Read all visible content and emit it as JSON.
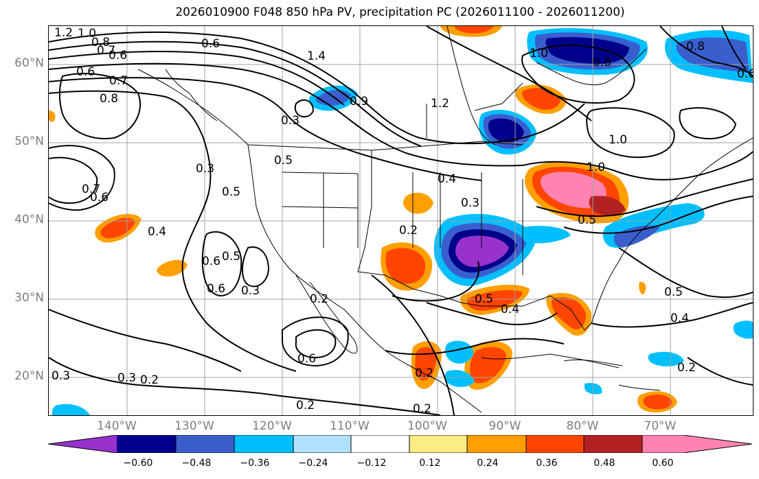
{
  "title": "2026010900 F048 850 hPa PV, precipitation PC (2026011100 - 2026011200)",
  "map": {
    "lat_labels": [
      "60°N",
      "50°N",
      "40°N",
      "30°N",
      "20°N"
    ],
    "lon_labels": [
      "140°W",
      "130°W",
      "120°W",
      "110°W",
      "100°W",
      "90°W",
      "80°W",
      "70°W"
    ],
    "contour_labels": [
      "1.2",
      "1.0",
      "0.8",
      "0.7",
      "0.6",
      "0.6",
      "0.7",
      "0.8",
      "0.6",
      "0.3",
      "0.3",
      "0.5",
      "0.5",
      "0.4",
      "0.6",
      "0.5",
      "0.3",
      "0.6",
      "0.6",
      "0.2",
      "0.3",
      "0.2",
      "0.3",
      "0.2",
      "0.2",
      "0.5",
      "0.4",
      "0.3",
      "1.0",
      "1.0",
      "1.0",
      "0.8",
      "0.8",
      "1.2",
      "1.4",
      "0.9",
      "0.5",
      "0.4",
      "0.2",
      "0.2",
      "0.5",
      "0.4",
      "0.2",
      "0.7",
      "0.6",
      "0.6"
    ]
  },
  "colorbar": {
    "ticks": [
      "−0.60",
      "−0.48",
      "−0.36",
      "−0.24",
      "−0.12",
      "0.12",
      "0.24",
      "0.36",
      "0.48",
      "0.60"
    ],
    "colors": [
      "#9932cc",
      "#00008b",
      "#3a5fcd",
      "#00bfff",
      "#b0e2ff",
      "#ffffff",
      "#fcec86",
      "#ff9f00",
      "#ff4500",
      "#b22222",
      "#ff83b0"
    ]
  }
}
